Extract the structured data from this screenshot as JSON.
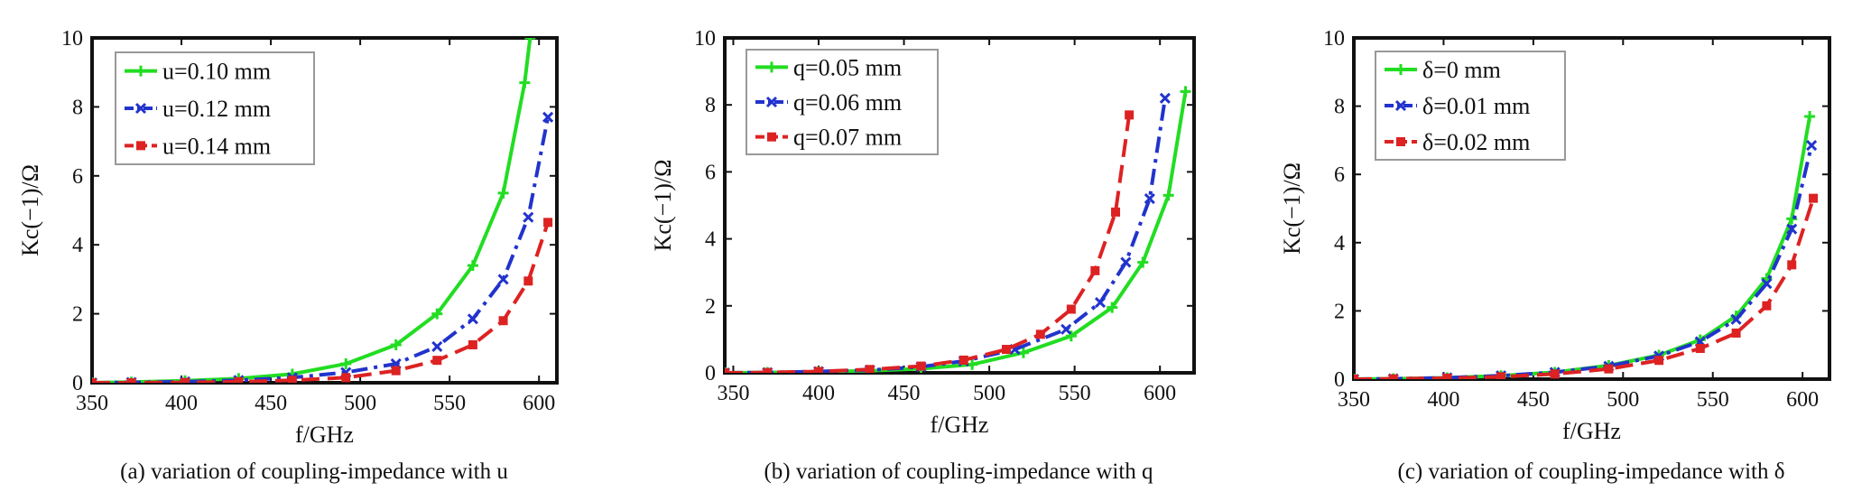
{
  "chart_data": [
    {
      "type": "line",
      "xlabel": "f/GHz",
      "ylabel": "Kc(−1)/Ω",
      "xlim": [
        350,
        610
      ],
      "ylim": [
        0,
        10
      ],
      "xticks": [
        350,
        400,
        450,
        500,
        550,
        600
      ],
      "yticks": [
        0,
        2,
        4,
        6,
        8,
        10
      ],
      "legend_position": "top-left",
      "grid": false,
      "caption": "(a) variation of coupling-impedance with u",
      "series": [
        {
          "name": "u=0.10 mm",
          "color": "#22dd22",
          "dash": "solid",
          "marker": "plus",
          "x": [
            350,
            372,
            402,
            432,
            462,
            492,
            520,
            543,
            563,
            580,
            592,
            595
          ],
          "y": [
            0.0,
            0.02,
            0.06,
            0.12,
            0.25,
            0.55,
            1.1,
            2.0,
            3.4,
            5.5,
            8.7,
            10.0
          ]
        },
        {
          "name": "u=0.12 mm",
          "color": "#2233cc",
          "dash": "dashdot",
          "marker": "x",
          "x": [
            350,
            372,
            402,
            432,
            462,
            492,
            520,
            543,
            563,
            580,
            594,
            605
          ],
          "y": [
            0.0,
            0.01,
            0.03,
            0.07,
            0.15,
            0.3,
            0.55,
            1.05,
            1.85,
            3.0,
            4.8,
            7.7
          ]
        },
        {
          "name": "u=0.14 mm",
          "color": "#dd2222",
          "dash": "dashed",
          "marker": "square",
          "x": [
            350,
            372,
            402,
            432,
            462,
            492,
            520,
            543,
            563,
            580,
            594,
            605
          ],
          "y": [
            0.0,
            0.0,
            0.01,
            0.03,
            0.07,
            0.15,
            0.35,
            0.65,
            1.1,
            1.8,
            2.95,
            4.65
          ]
        }
      ]
    },
    {
      "type": "line",
      "xlabel": "f/GHz",
      "ylabel": "Kc(−1)/Ω",
      "xlim": [
        345,
        620
      ],
      "ylim": [
        0,
        10
      ],
      "xticks": [
        350,
        400,
        450,
        500,
        550,
        600
      ],
      "yticks": [
        0,
        2,
        4,
        6,
        8,
        10
      ],
      "legend_position": "top-left",
      "grid": false,
      "caption": "(b) variation of coupling-impedance with q",
      "series": [
        {
          "name": "q=0.05 mm",
          "color": "#22dd22",
          "dash": "solid",
          "marker": "plus",
          "x": [
            345,
            370,
            400,
            430,
            460,
            490,
            520,
            548,
            572,
            590,
            605,
            615
          ],
          "y": [
            0.0,
            0.01,
            0.03,
            0.06,
            0.12,
            0.25,
            0.6,
            1.1,
            1.95,
            3.3,
            5.3,
            8.4
          ]
        },
        {
          "name": "q=0.06 mm",
          "color": "#2233cc",
          "dash": "dashdot",
          "marker": "x",
          "x": [
            345,
            370,
            400,
            430,
            460,
            485,
            515,
            545,
            565,
            580,
            594,
            603
          ],
          "y": [
            0.0,
            0.01,
            0.04,
            0.08,
            0.18,
            0.35,
            0.7,
            1.3,
            2.1,
            3.3,
            5.2,
            8.2
          ]
        },
        {
          "name": "q=0.07 mm",
          "color": "#dd2222",
          "dash": "dashed",
          "marker": "square",
          "x": [
            345,
            370,
            400,
            430,
            460,
            485,
            510,
            530,
            548,
            562,
            574,
            582
          ],
          "y": [
            0.0,
            0.01,
            0.04,
            0.1,
            0.2,
            0.38,
            0.7,
            1.15,
            1.9,
            3.05,
            4.8,
            7.7
          ]
        }
      ]
    },
    {
      "type": "line",
      "xlabel": "f/GHz",
      "ylabel": "Kc(−1)/Ω",
      "xlim": [
        350,
        615
      ],
      "ylim": [
        0,
        10
      ],
      "xticks": [
        350,
        400,
        450,
        500,
        550,
        600
      ],
      "yticks": [
        0,
        2,
        4,
        6,
        8,
        10
      ],
      "legend_position": "top-left",
      "grid": false,
      "caption": "(c) variation of coupling-impedance with δ",
      "series": [
        {
          "name": "δ=0 mm",
          "color": "#22dd22",
          "dash": "solid",
          "marker": "plus",
          "x": [
            350,
            372,
            402,
            432,
            462,
            492,
            520,
            543,
            563,
            580,
            594,
            604
          ],
          "y": [
            0.0,
            0.01,
            0.04,
            0.1,
            0.2,
            0.4,
            0.7,
            1.15,
            1.85,
            2.95,
            4.7,
            7.7
          ]
        },
        {
          "name": "δ=0.01 mm",
          "color": "#2233cc",
          "dash": "dashdot",
          "marker": "x",
          "x": [
            350,
            372,
            402,
            432,
            462,
            492,
            520,
            543,
            563,
            580,
            594,
            605
          ],
          "y": [
            0.0,
            0.01,
            0.04,
            0.1,
            0.2,
            0.38,
            0.68,
            1.1,
            1.75,
            2.8,
            4.4,
            6.85
          ]
        },
        {
          "name": "δ=0.02 mm",
          "color": "#dd2222",
          "dash": "dashed",
          "marker": "square",
          "x": [
            350,
            372,
            402,
            432,
            462,
            492,
            520,
            543,
            563,
            580,
            594,
            606
          ],
          "y": [
            0.0,
            0.01,
            0.03,
            0.07,
            0.15,
            0.3,
            0.55,
            0.9,
            1.35,
            2.15,
            3.35,
            5.3
          ]
        }
      ]
    }
  ]
}
